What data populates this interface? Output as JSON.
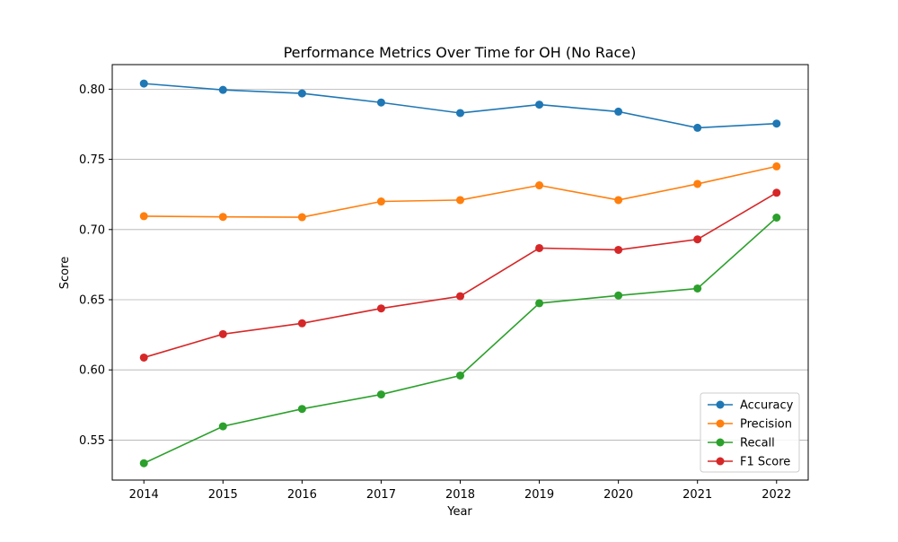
{
  "chart_data": {
    "type": "line",
    "title": "Performance Metrics Over Time for OH (No Race)",
    "xlabel": "Year",
    "ylabel": "Score",
    "x": [
      2014,
      2015,
      2016,
      2017,
      2018,
      2019,
      2020,
      2021,
      2022
    ],
    "xlim": [
      2013.6,
      2022.4
    ],
    "ylim": [
      0.5215,
      0.8175
    ],
    "yticks": [
      0.55,
      0.6,
      0.65,
      0.7,
      0.75,
      0.8
    ],
    "ytick_labels": [
      "0.55",
      "0.60",
      "0.65",
      "0.70",
      "0.75",
      "0.80"
    ],
    "grid": "horizontal",
    "legend_position": "lower-right",
    "series": [
      {
        "name": "Accuracy",
        "color": "#1f77b4",
        "values": [
          0.804,
          0.7995,
          0.797,
          0.7905,
          0.783,
          0.789,
          0.784,
          0.7725,
          0.7755
        ]
      },
      {
        "name": "Precision",
        "color": "#ff7f0e",
        "values": [
          0.7095,
          0.709,
          0.7088,
          0.72,
          0.721,
          0.7315,
          0.721,
          0.7325,
          0.745
        ]
      },
      {
        "name": "Recall",
        "color": "#2ca02c",
        "values": [
          0.5335,
          0.5598,
          0.5722,
          0.5825,
          0.596,
          0.6475,
          0.653,
          0.658,
          0.7085
        ]
      },
      {
        "name": "F1 Score",
        "color": "#d62728",
        "values": [
          0.6088,
          0.6255,
          0.6332,
          0.6438,
          0.6525,
          0.6868,
          0.6855,
          0.693,
          0.7262
        ]
      }
    ]
  }
}
